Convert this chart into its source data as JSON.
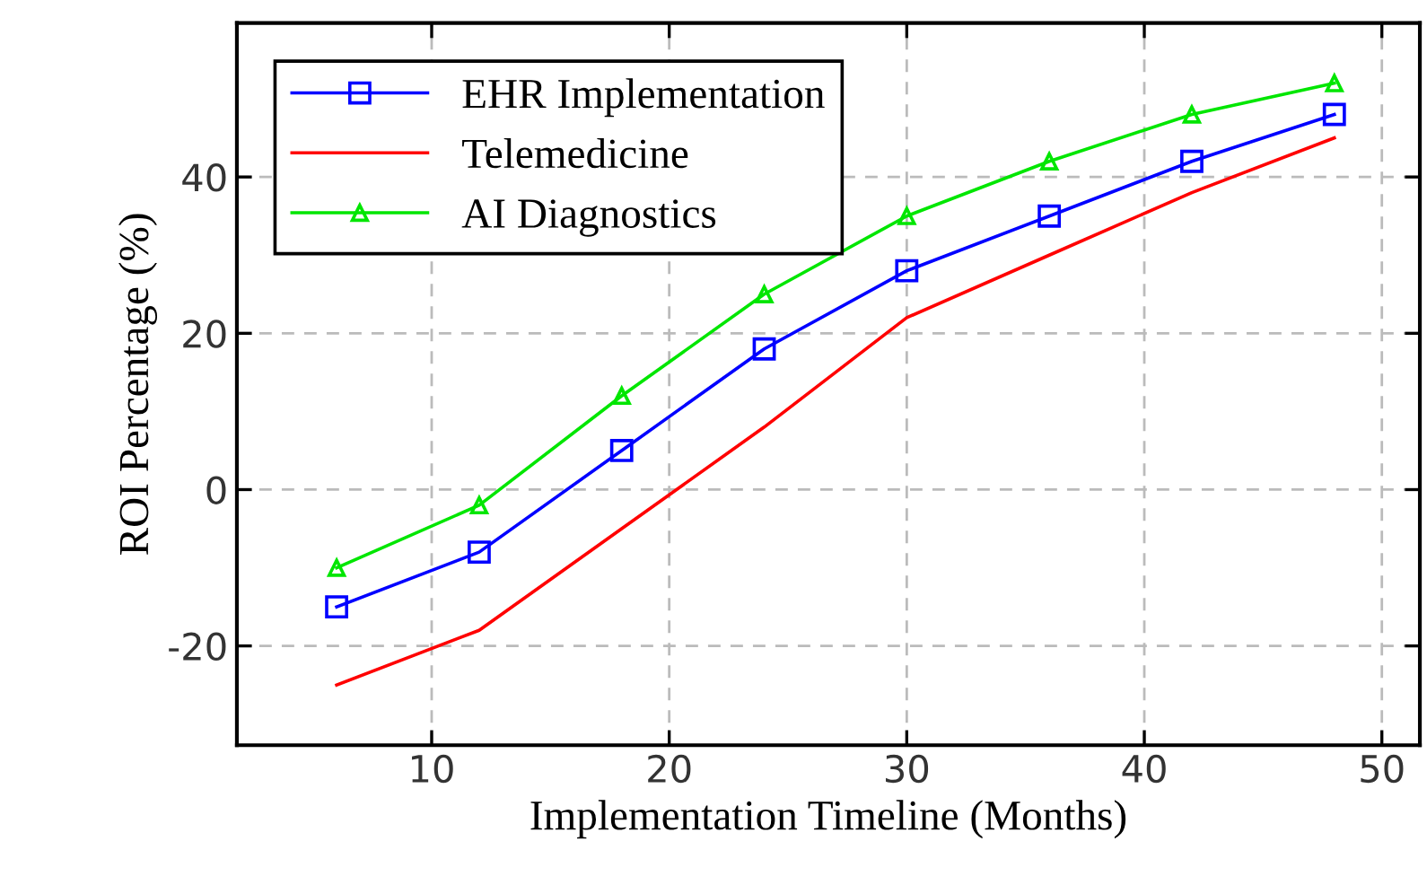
{
  "chart_data": {
    "type": "line",
    "xlabel": "Implementation Timeline (Months)",
    "ylabel": "ROI Percentage (%)",
    "x": [
      6,
      12,
      18,
      24,
      30,
      36,
      42,
      48
    ],
    "series": [
      {
        "name": "EHR Implementation",
        "color": "#0000ff",
        "marker": "square",
        "values": [
          -15,
          -8,
          5,
          18,
          28,
          35,
          42,
          48
        ]
      },
      {
        "name": "Telemedicine",
        "color": "#ff0000",
        "marker": "none",
        "values": [
          -25,
          -18,
          -5,
          8,
          22,
          30,
          38,
          45
        ]
      },
      {
        "name": "AI Diagnostics",
        "color": "#00e600",
        "marker": "triangle",
        "values": [
          -10,
          -2,
          12,
          25,
          35,
          42,
          48,
          52
        ]
      }
    ],
    "xlim": [
      1.8,
      51.6
    ],
    "ylim": [
      -32.7,
      59.7
    ],
    "xticks": [
      10,
      20,
      30,
      40,
      50
    ],
    "yticks": [
      -20,
      0,
      20,
      40
    ],
    "grid": true,
    "legend": "top left",
    "line_style": "solid"
  }
}
